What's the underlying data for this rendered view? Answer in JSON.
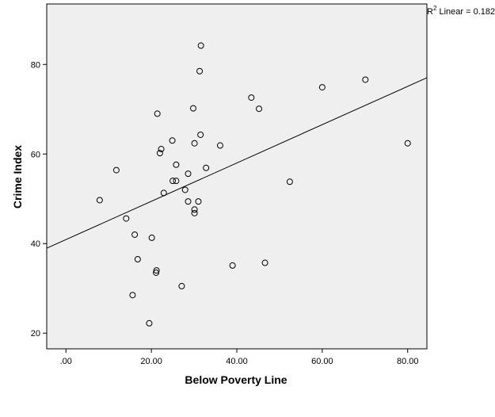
{
  "chart_data": {
    "type": "scatter",
    "title": "",
    "xlabel": "Below Poverty Line",
    "ylabel": "Crime Index",
    "xlim": [
      -4.5,
      84.5
    ],
    "ylim": [
      16.5,
      93.5
    ],
    "x_ticks": [
      0,
      20,
      40,
      60,
      80
    ],
    "x_tick_labels": [
      ".00",
      "20.00",
      "40.00",
      "60.00",
      "80.00"
    ],
    "y_ticks": [
      20,
      40,
      60,
      80
    ],
    "y_tick_labels": [
      "20",
      "40",
      "60",
      "80"
    ],
    "grid": false,
    "plot_background": "#efefef",
    "marker": "open-circle",
    "fit_line": {
      "label_prefix": "R",
      "label_sup": "2",
      "label_suffix": " Linear = 0.182",
      "slope": 0.4276,
      "intercept": 40.89
    },
    "points": [
      {
        "x": 31.6,
        "y": 84.2
      },
      {
        "x": 31.3,
        "y": 78.5
      },
      {
        "x": 70.1,
        "y": 76.6
      },
      {
        "x": 60.0,
        "y": 74.9
      },
      {
        "x": 43.4,
        "y": 72.6
      },
      {
        "x": 29.8,
        "y": 70.2
      },
      {
        "x": 45.2,
        "y": 70.1
      },
      {
        "x": 21.4,
        "y": 69.0
      },
      {
        "x": 31.5,
        "y": 64.3
      },
      {
        "x": 24.9,
        "y": 63.0
      },
      {
        "x": 30.1,
        "y": 62.4
      },
      {
        "x": 80.0,
        "y": 62.4
      },
      {
        "x": 36.1,
        "y": 61.9
      },
      {
        "x": 22.3,
        "y": 61.1
      },
      {
        "x": 22.0,
        "y": 60.2
      },
      {
        "x": 25.8,
        "y": 57.6
      },
      {
        "x": 32.8,
        "y": 56.9
      },
      {
        "x": 11.8,
        "y": 56.4
      },
      {
        "x": 28.6,
        "y": 55.6
      },
      {
        "x": 25.0,
        "y": 54.0
      },
      {
        "x": 25.8,
        "y": 54.0
      },
      {
        "x": 52.4,
        "y": 53.8
      },
      {
        "x": 27.9,
        "y": 52.0
      },
      {
        "x": 22.9,
        "y": 51.3
      },
      {
        "x": 7.9,
        "y": 49.7
      },
      {
        "x": 28.6,
        "y": 49.4
      },
      {
        "x": 31.0,
        "y": 49.4
      },
      {
        "x": 30.1,
        "y": 47.6
      },
      {
        "x": 30.1,
        "y": 46.8
      },
      {
        "x": 14.1,
        "y": 45.6
      },
      {
        "x": 16.1,
        "y": 42.0
      },
      {
        "x": 20.1,
        "y": 41.3
      },
      {
        "x": 16.8,
        "y": 36.5
      },
      {
        "x": 46.6,
        "y": 35.7
      },
      {
        "x": 39.0,
        "y": 35.1
      },
      {
        "x": 21.2,
        "y": 34.0
      },
      {
        "x": 21.1,
        "y": 33.5
      },
      {
        "x": 27.1,
        "y": 30.5
      },
      {
        "x": 15.6,
        "y": 28.5
      },
      {
        "x": 19.5,
        "y": 22.2
      }
    ]
  }
}
